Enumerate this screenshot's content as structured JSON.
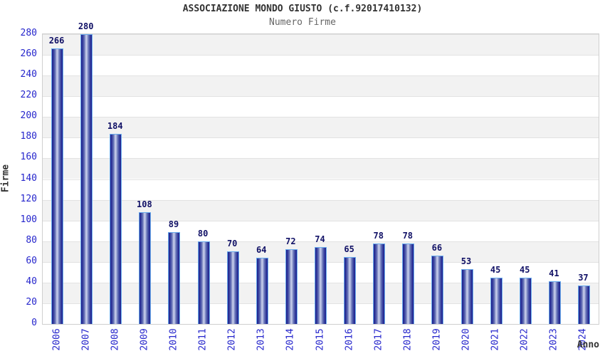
{
  "header": {
    "title": "ASSOCIAZIONE MONDO GIUSTO (c.f.92017410132)",
    "subtitle": "Numero Firme"
  },
  "chart_data": {
    "type": "bar",
    "title": "ASSOCIAZIONE MONDO GIUSTO (c.f.92017410132)",
    "subtitle": "Numero Firme",
    "xlabel": "Anno",
    "ylabel": "Firme",
    "categories": [
      "2006",
      "2007",
      "2008",
      "2009",
      "2010",
      "2011",
      "2012",
      "2013",
      "2014",
      "2015",
      "2016",
      "2017",
      "2018",
      "2019",
      "2020",
      "2021",
      "2022",
      "2023",
      "2024"
    ],
    "values": [
      266,
      280,
      184,
      108,
      89,
      80,
      70,
      64,
      72,
      74,
      65,
      78,
      78,
      66,
      53,
      45,
      45,
      41,
      37
    ],
    "ylim": [
      0,
      280
    ],
    "ytick_step": 20,
    "grid": "horizontal-bands-alternating",
    "legend": "none",
    "value_labels": "above-bars",
    "colors": {
      "bar_edge": "#1f1f8c",
      "bar_highlight": "#ccd3ed",
      "bar_outline": "#6aaced",
      "tick_label": "#2626cc",
      "value_label": "#111166",
      "title": "#333333",
      "subtitle": "#666666",
      "band_gray": "#f2f2f2",
      "gridline": "#e2e2e2",
      "plot_border": "#cfcfcf"
    }
  }
}
